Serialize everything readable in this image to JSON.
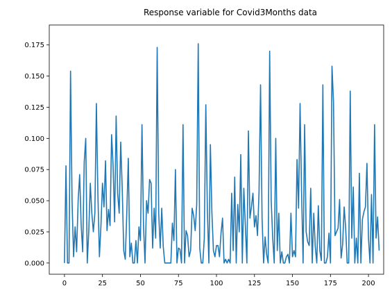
{
  "chart_data": {
    "type": "line",
    "title": "Response variable for Covid3Months data",
    "xlabel": "",
    "ylabel": "",
    "xlim": [
      -10,
      210
    ],
    "ylim": [
      -0.009,
      0.191
    ],
    "x_ticks": [
      0,
      25,
      50,
      75,
      100,
      125,
      150,
      175,
      200
    ],
    "y_ticks": [
      0.0,
      0.025,
      0.05,
      0.075,
      0.1,
      0.125,
      0.15,
      0.175
    ],
    "y_tick_labels": [
      "0.000",
      "0.025",
      "0.050",
      "0.075",
      "0.100",
      "0.125",
      "0.150",
      "0.175"
    ],
    "grid": false,
    "color": "#1f77b4",
    "series": [
      {
        "x_start": 0,
        "x_step": 1,
        "values": [
          0.0,
          0.078,
          0.0,
          0.0,
          0.154,
          0.05,
          0.005,
          0.029,
          0.009,
          0.05,
          0.071,
          0.03,
          0.009,
          0.081,
          0.1,
          0.0,
          0.026,
          0.064,
          0.04,
          0.025,
          0.04,
          0.128,
          0.055,
          0.005,
          0.03,
          0.064,
          0.045,
          0.082,
          0.026,
          0.043,
          0.03,
          0.103,
          0.078,
          0.033,
          0.118,
          0.056,
          0.04,
          0.097,
          0.06,
          0.01,
          0.003,
          0.04,
          0.084,
          0.005,
          0.016,
          0.0,
          0.0,
          0.018,
          0.0,
          0.029,
          0.018,
          0.111,
          0.03,
          0.0,
          0.05,
          0.04,
          0.067,
          0.064,
          0.012,
          0.044,
          0.02,
          0.173,
          0.04,
          0.012,
          0.044,
          0.013,
          0.0,
          0.0,
          0.0,
          0.0,
          0.0,
          0.032,
          0.018,
          0.075,
          0.0,
          0.012,
          0.011,
          0.0,
          0.111,
          0.0,
          0.026,
          0.022,
          0.005,
          0.01,
          0.044,
          0.038,
          0.026,
          0.047,
          0.176,
          0.012,
          0.0,
          0.0,
          0.02,
          0.127,
          0.043,
          0.0,
          0.095,
          0.04,
          0.01,
          0.005,
          0.014,
          0.014,
          0.005,
          0.024,
          0.036,
          0.0,
          0.003,
          0.0,
          0.003,
          0.0,
          0.056,
          0.01,
          0.069,
          0.0,
          0.047,
          0.025,
          0.087,
          0.0,
          0.06,
          0.03,
          0.0,
          0.106,
          0.036,
          0.045,
          0.056,
          0.029,
          0.038,
          0.022,
          0.057,
          0.143,
          0.036,
          0.0,
          0.021,
          0.007,
          0.0,
          0.17,
          0.05,
          0.02,
          0.0,
          0.1,
          0.01,
          0.04,
          0.0,
          0.009,
          0.0,
          0.0,
          0.005,
          0.007,
          0.0,
          0.04,
          0.005,
          0.01,
          0.005,
          0.083,
          0.044,
          0.128,
          0.056,
          0.0,
          0.111,
          0.025,
          0.017,
          0.014,
          0.06,
          0.0,
          0.04,
          0.013,
          0.0,
          0.046,
          0.01,
          0.002,
          0.143,
          0.0,
          0.0,
          0.005,
          0.024,
          0.0,
          0.158,
          0.129,
          0.022,
          0.025,
          0.028,
          0.051,
          0.004,
          0.015,
          0.045,
          0.028,
          0.0,
          0.0,
          0.138,
          0.02,
          0.061,
          0.0,
          0.02,
          0.0,
          0.072,
          0.0,
          0.035,
          0.041,
          0.045,
          0.08,
          0.02,
          0.0,
          0.055,
          0.0,
          0.111,
          0.02,
          0.037,
          0.01
        ]
      }
    ]
  }
}
